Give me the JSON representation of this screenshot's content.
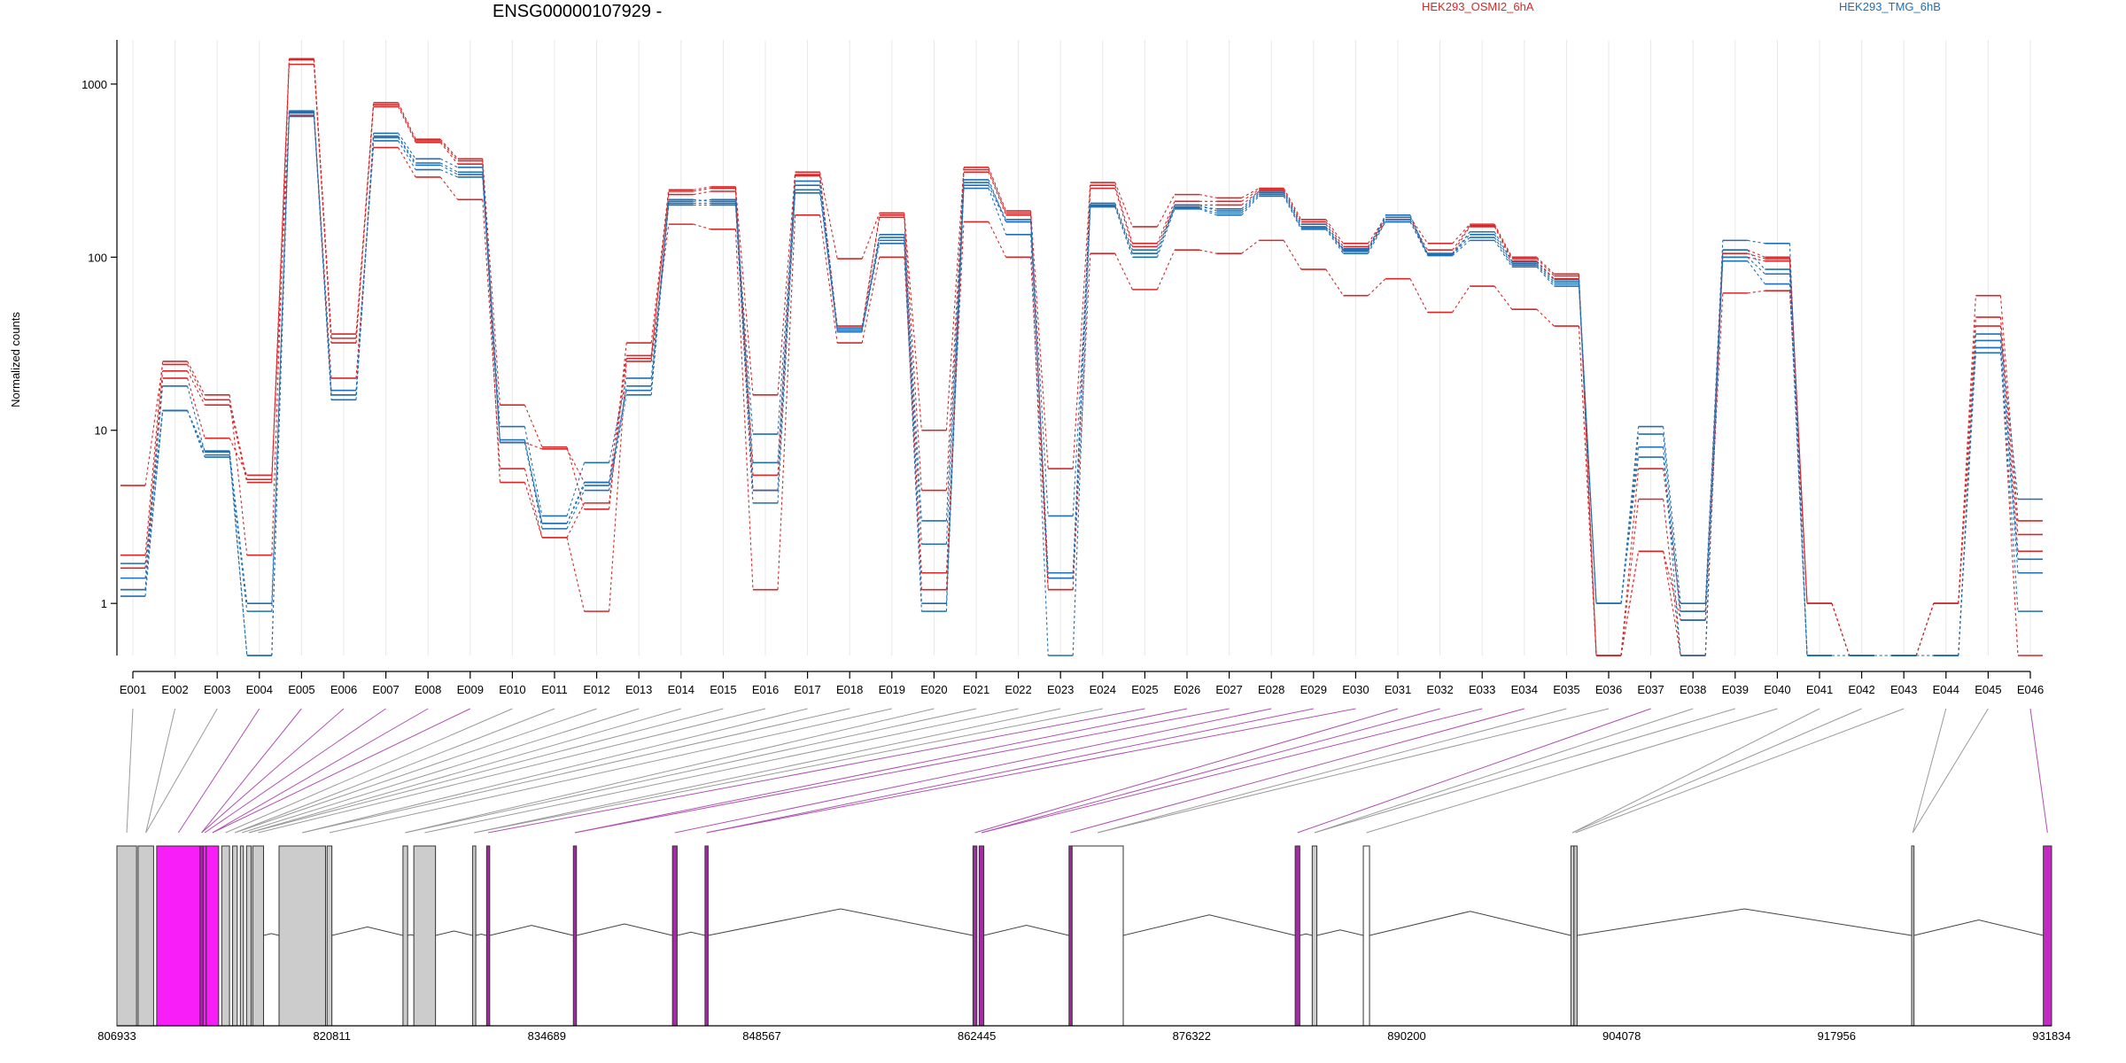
{
  "chart_data": {
    "type": "line",
    "title": "ENSG00000107929 -",
    "xlabel": "",
    "ylabel": "Normalized counts",
    "y_scale": "log",
    "y_ticks": [
      1,
      10,
      100,
      1000
    ],
    "y_tick_labels": [
      "1",
      "10",
      "100",
      "1000"
    ],
    "ylim": [
      0.5,
      1800
    ],
    "grid": "vertical dotted lines at each exon",
    "legend_placement": "top",
    "categories": [
      "E001",
      "E002",
      "E003",
      "E004",
      "E005",
      "E006",
      "E007",
      "E008",
      "E009",
      "E010",
      "E011",
      "E012",
      "E013",
      "E014",
      "E015",
      "E016",
      "E017",
      "E018",
      "E019",
      "E020",
      "E021",
      "E022",
      "E023",
      "E024",
      "E025",
      "E026",
      "E027",
      "E028",
      "E029",
      "E030",
      "E031",
      "E032",
      "E033",
      "E034",
      "E035",
      "E036",
      "E037",
      "E038",
      "E039",
      "E040",
      "E041",
      "E042",
      "E043",
      "E044",
      "E045",
      "E046"
    ],
    "series": [
      {
        "name": "HEK293_OSMI2_6hA",
        "color": "#d62728",
        "values": [
          1.9,
          25,
          16,
          1.9,
          1400,
          36,
          780,
          480,
          370,
          14,
          8,
          3.5,
          32,
          245,
          255,
          16,
          310,
          98,
          180,
          10,
          330,
          185,
          6,
          270,
          150,
          230,
          220,
          250,
          165,
          120,
          170,
          120,
          155,
          100,
          80,
          0.5,
          6,
          0.9,
          110,
          100,
          1,
          0.5,
          0.5,
          1,
          60,
          3
        ]
      },
      {
        "name": "HEK293_OSMI2_6hA",
        "color": "#d62728",
        "values": [
          1.6,
          22,
          14,
          5,
          1300,
          34,
          740,
          460,
          345,
          8.5,
          7.8,
          5,
          27,
          230,
          240,
          5.5,
          295,
          40,
          170,
          4.5,
          310,
          175,
          1.4,
          250,
          115,
          200,
          200,
          240,
          155,
          110,
          160,
          105,
          150,
          95,
          75,
          0.5,
          4,
          0.5,
          100,
          95,
          1,
          0.5,
          0.5,
          1,
          45,
          2.5
        ]
      },
      {
        "name": "HEK293_OSMI2_6hA",
        "color": "#d62728",
        "values": [
          1.2,
          20,
          9,
          5.5,
          660,
          20,
          430,
          290,
          215,
          6,
          2.4,
          0.9,
          25,
          155,
          145,
          1.2,
          175,
          32,
          100,
          1.5,
          160,
          100,
          1.2,
          105,
          65,
          110,
          105,
          125,
          85,
          60,
          75,
          48,
          68,
          50,
          40,
          0.5,
          2,
          0.8,
          62,
          64,
          1,
          0.5,
          0.5,
          1,
          30,
          0.5
        ]
      },
      {
        "name": "HEK293_OSMI2_6hA",
        "color": "#d62728",
        "values": [
          4.8,
          24,
          15,
          5.2,
          1380,
          32,
          760,
          470,
          360,
          5,
          2.4,
          3.8,
          26,
          240,
          250,
          4.5,
          300,
          38,
          175,
          1.2,
          320,
          180,
          1.2,
          260,
          120,
          210,
          210,
          245,
          160,
          115,
          165,
          110,
          152,
          98,
          78,
          0.5,
          2,
          0.5,
          105,
          98,
          1,
          0.5,
          0.5,
          1,
          40,
          2
        ]
      },
      {
        "name": "HEK293_TMG_6hB",
        "color": "#1f6fb4",
        "values": [
          1.1,
          13,
          7,
          0.9,
          650,
          17,
          470,
          320,
          290,
          8.5,
          2.7,
          4.5,
          16,
          200,
          200,
          3.8,
          235,
          37,
          120,
          0.9,
          250,
          135,
          0.5,
          195,
          100,
          190,
          175,
          225,
          145,
          105,
          160,
          102,
          125,
          88,
          68,
          1,
          7,
          0.9,
          95,
          70,
          0.5,
          0.5,
          0.5,
          0.5,
          28,
          0.9
        ]
      },
      {
        "name": "HEK293_TMG_6hB",
        "color": "#1f6fb4",
        "values": [
          1.4,
          18,
          7.5,
          1,
          690,
          15,
          500,
          350,
          310,
          10.5,
          3.2,
          6.5,
          20,
          210,
          215,
          6.5,
          260,
          39,
          130,
          1,
          270,
          165,
          3.2,
          200,
          105,
          200,
          185,
          235,
          150,
          110,
          170,
          105,
          135,
          92,
          72,
          1,
          9.5,
          0.8,
          100,
          80,
          0.5,
          0.5,
          0.5,
          0.5,
          33,
          1.8
        ]
      },
      {
        "name": "HEK293_TMG_6hB",
        "color": "#1f6fb4",
        "values": [
          1.7,
          13,
          7.6,
          0.5,
          700,
          16,
          520,
          370,
          330,
          8.8,
          2.9,
          5,
          17,
          215,
          210,
          9.5,
          275,
          38,
          135,
          3,
          280,
          160,
          1.5,
          205,
          110,
          195,
          190,
          240,
          155,
          112,
          175,
          103,
          140,
          94,
          74,
          1,
          10.5,
          1,
          125,
          120,
          0.5,
          0.5,
          0.5,
          0.5,
          36,
          4
        ]
      },
      {
        "name": "HEK293_TMG_6hB",
        "color": "#1f6fb4",
        "values": [
          1.2,
          13,
          7.2,
          0.5,
          680,
          16,
          490,
          340,
          300,
          8.5,
          2.9,
          4.8,
          18,
          205,
          205,
          4.5,
          245,
          38,
          125,
          2.2,
          260,
          160,
          1.4,
          198,
          105,
          192,
          180,
          230,
          148,
          108,
          165,
          104,
          130,
          90,
          70,
          1,
          8,
          0.5,
          110,
          85,
          0.5,
          0.5,
          0.5,
          0.5,
          30,
          1.5
        ]
      }
    ],
    "genomic_axis": {
      "tick_labels": [
        "806933",
        "820811",
        "834689",
        "848567",
        "862445",
        "876322",
        "890200",
        "904078",
        "917956",
        "931834"
      ],
      "range": [
        806933,
        931834
      ]
    },
    "exons": [
      {
        "start": 806933,
        "end": 808200,
        "fill": "#cccccc"
      },
      {
        "start": 808300,
        "end": 809300,
        "fill": "#cccccc"
      },
      {
        "start": 809500,
        "end": 812300,
        "fill": "#f71ef7"
      },
      {
        "start": 812300,
        "end": 812500,
        "fill": "#a62aa6"
      },
      {
        "start": 812500,
        "end": 812700,
        "fill": "#f71ef7"
      },
      {
        "start": 812700,
        "end": 813500,
        "fill": "#f71ef7"
      },
      {
        "start": 813700,
        "end": 814200,
        "fill": "#cccccc"
      },
      {
        "start": 814400,
        "end": 814700,
        "fill": "#cccccc"
      },
      {
        "start": 814900,
        "end": 815100,
        "fill": "#cccccc"
      },
      {
        "start": 815300,
        "end": 815600,
        "fill": "#cccccc"
      },
      {
        "start": 815700,
        "end": 816400,
        "fill": "#cccccc"
      },
      {
        "start": 817400,
        "end": 820400,
        "fill": "#cccccc"
      },
      {
        "start": 820500,
        "end": 820811,
        "fill": "#cccccc"
      },
      {
        "start": 825400,
        "end": 825700,
        "fill": "#cccccc"
      },
      {
        "start": 826100,
        "end": 827500,
        "fill": "#cccccc"
      },
      {
        "start": 829900,
        "end": 830100,
        "fill": "#cccccc"
      },
      {
        "start": 830800,
        "end": 831000,
        "fill": "#a62aa6"
      },
      {
        "start": 836400,
        "end": 836600,
        "fill": "#a62aa6"
      },
      {
        "start": 842800,
        "end": 843100,
        "fill": "#a62aa6"
      },
      {
        "start": 844900,
        "end": 845100,
        "fill": "#a62aa6"
      },
      {
        "start": 862200,
        "end": 862450,
        "fill": "#a62aa6"
      },
      {
        "start": 862600,
        "end": 862900,
        "fill": "#a62aa6"
      },
      {
        "start": 868400,
        "end": 868600,
        "fill": "#a62aa6"
      },
      {
        "start": 868600,
        "end": 871900,
        "fill": "#ffffff"
      },
      {
        "start": 883000,
        "end": 883300,
        "fill": "#a62aa6"
      },
      {
        "start": 884100,
        "end": 884400,
        "fill": "#cccccc"
      },
      {
        "start": 887400,
        "end": 887800,
        "fill": "#ffffff"
      },
      {
        "start": 900800,
        "end": 901000,
        "fill": "#cccccc"
      },
      {
        "start": 901000,
        "end": 901200,
        "fill": "#cccccc"
      },
      {
        "start": 922800,
        "end": 922950,
        "fill": "#cccccc"
      },
      {
        "start": 931300,
        "end": 931834,
        "fill": "#c22ac2"
      }
    ]
  }
}
